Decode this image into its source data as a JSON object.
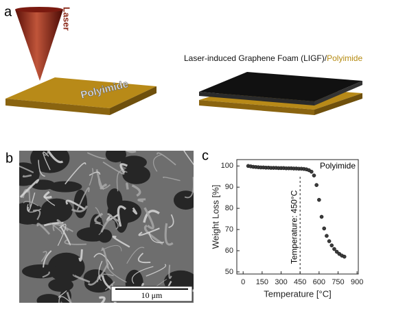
{
  "panels": {
    "a": {
      "label": "a",
      "laser": "Laser",
      "substrate": "Polyimide",
      "caption": {
        "foam": "Laser-induced Graphene Foam (LIGF)",
        "slash": "/",
        "base": "Polyimide"
      }
    },
    "b": {
      "label": "b",
      "scale_bar": "10 μm"
    },
    "c": {
      "label": "c"
    }
  },
  "chart_data": {
    "type": "scatter",
    "xlabel": "Temperature [°C]",
    "ylabel": "Weight Loss [%]",
    "annotation": "Temperature: 450°C",
    "vline": 450,
    "series_label": "Polyimide",
    "color": "#3a3a3a",
    "x": [
      40,
      60,
      80,
      100,
      120,
      140,
      160,
      180,
      200,
      220,
      240,
      260,
      280,
      300,
      320,
      340,
      360,
      380,
      400,
      420,
      440,
      460,
      480,
      500,
      520,
      540,
      560,
      580,
      600,
      620,
      640,
      660,
      680,
      700,
      720,
      740,
      760,
      780,
      800
    ],
    "values": [
      100,
      99.8,
      99.6,
      99.5,
      99.4,
      99.3,
      99.3,
      99.2,
      99.2,
      99.1,
      99.1,
      99.1,
      99.0,
      99.0,
      99.0,
      98.9,
      98.9,
      98.9,
      98.8,
      98.8,
      98.7,
      98.7,
      98.6,
      98.4,
      98,
      97.3,
      95.5,
      91,
      84,
      76,
      70.5,
      67,
      64.5,
      62.5,
      60.8,
      59.5,
      58.5,
      57.7,
      57.2
    ],
    "xlim": [
      -50,
      910
    ],
    "xticks": [
      0,
      150,
      300,
      450,
      600,
      750,
      900
    ],
    "ylim": [
      49,
      103
    ],
    "yticks": [
      50,
      60,
      70,
      80,
      90,
      100
    ]
  }
}
